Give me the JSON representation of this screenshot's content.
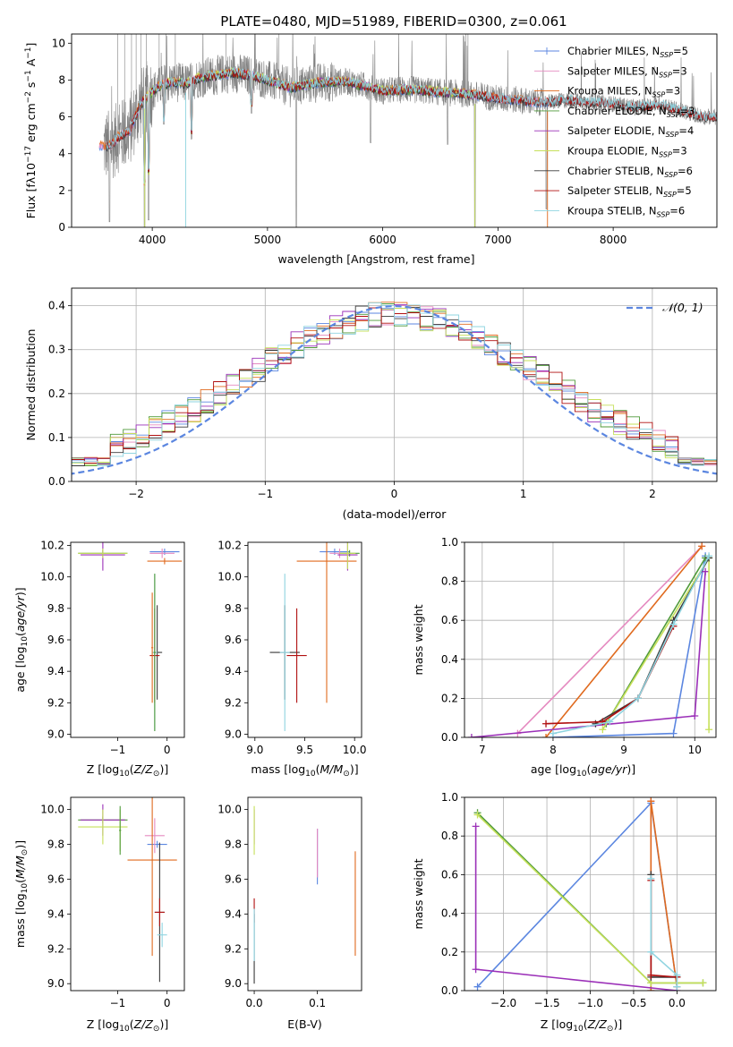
{
  "figure": {
    "title": "PLATE=0480, MJD=51989, FIBERID=0300, z=0.061"
  },
  "colors": {
    "Chabrier MILES": "#5b86e0",
    "Salpeter MILES": "#e58ac0",
    "Kroupa MILES": "#e06a1e",
    "Chabrier ELODIE": "#4f9a3a",
    "Salpeter ELODIE": "#9b30b8",
    "Kroupa ELODIE": "#c6e05a",
    "Chabrier STELIB": "#3a3a3a",
    "Salpeter STELIB": "#b01010",
    "Kroupa STELIB": "#8fd4e0",
    "data": "#808080"
  },
  "chart_data": [
    {
      "id": "spectrum",
      "type": "line",
      "xlabel": "wavelength [Angstrom, rest frame]",
      "ylabel": "Flux [f_λ10^-17 erg cm^-2 s^-1 A^-1]",
      "xlim": [
        3300,
        8900
      ],
      "ylim": [
        0,
        10.5
      ],
      "xticks": [
        4000,
        5000,
        6000,
        7000,
        8000
      ],
      "yticks": [
        0,
        2,
        4,
        6,
        8,
        10
      ],
      "grid": false,
      "legend_placement": "upper right",
      "legend": [
        {
          "model": "Chabrier MILES",
          "label": "Chabrier MILES, N",
          "sub": "SSP",
          "tail": "=5"
        },
        {
          "model": "Salpeter MILES",
          "label": "Salpeter MILES, N",
          "sub": "SSP",
          "tail": "=3"
        },
        {
          "model": "Kroupa MILES",
          "label": "Kroupa MILES, N",
          "sub": "SSP",
          "tail": "=3"
        },
        {
          "model": "Chabrier ELODIE",
          "label": "Chabrier ELODIE, N",
          "sub": "SSP",
          "tail": "=3"
        },
        {
          "model": "Salpeter ELODIE",
          "label": "Salpeter ELODIE, N",
          "sub": "SSP",
          "tail": "=4"
        },
        {
          "model": "Kroupa ELODIE",
          "label": "Kroupa ELODIE, N",
          "sub": "SSP",
          "tail": "=3"
        },
        {
          "model": "Chabrier STELIB",
          "label": "Chabrier STELIB, N",
          "sub": "SSP",
          "tail": "=6"
        },
        {
          "model": "Salpeter STELIB",
          "label": "Salpeter STELIB, N",
          "sub": "SSP",
          "tail": "=5"
        },
        {
          "model": "Kroupa STELIB",
          "label": "Kroupa STELIB, N",
          "sub": "SSP",
          "tail": "=6"
        }
      ],
      "continuum_points": [
        [
          3600,
          4.4
        ],
        [
          3650,
          4.5
        ],
        [
          3700,
          4.9
        ],
        [
          3800,
          5.2
        ],
        [
          3900,
          6.7
        ],
        [
          4000,
          7.4
        ],
        [
          4100,
          7.8
        ],
        [
          4200,
          7.9
        ],
        [
          4300,
          7.8
        ],
        [
          4400,
          8.1
        ],
        [
          4500,
          8.2
        ],
        [
          4600,
          8.3
        ],
        [
          4700,
          8.4
        ],
        [
          4800,
          8.3
        ],
        [
          4900,
          8.2
        ],
        [
          5000,
          8.0
        ],
        [
          5100,
          7.8
        ],
        [
          5200,
          7.6
        ],
        [
          5300,
          7.7
        ],
        [
          5400,
          7.8
        ],
        [
          5500,
          7.9
        ],
        [
          5700,
          7.9
        ],
        [
          5900,
          7.6
        ],
        [
          6000,
          7.4
        ],
        [
          6200,
          7.5
        ],
        [
          6400,
          7.4
        ],
        [
          6600,
          7.3
        ],
        [
          6800,
          7.2
        ],
        [
          7000,
          7.0
        ],
        [
          7200,
          6.9
        ],
        [
          7300,
          6.8
        ],
        [
          7440,
          6.8
        ],
        [
          7600,
          6.9
        ],
        [
          7800,
          6.8
        ],
        [
          8000,
          6.7
        ],
        [
          8200,
          6.5
        ],
        [
          8400,
          6.7
        ],
        [
          8600,
          6.3
        ],
        [
          8800,
          6.0
        ]
      ],
      "data_range": [
        3580,
        8900
      ],
      "data_dips": [
        [
          3630,
          0.3
        ],
        [
          3933,
          0.0
        ],
        [
          3968,
          0.4
        ],
        [
          4100,
          5.6
        ],
        [
          4340,
          4.8
        ],
        [
          4861,
          6.2
        ],
        [
          5250,
          0.0
        ],
        [
          5895,
          4.6
        ],
        [
          6563,
          4.5
        ],
        [
          6800,
          0.0
        ],
        [
          7420,
          1.0
        ]
      ],
      "model_dips": [
        [
          3933,
          2.5
        ],
        [
          3968,
          3.0
        ],
        [
          4100,
          6.0
        ],
        [
          4340,
          5.3
        ],
        [
          4861,
          6.8
        ]
      ],
      "model_ranges": {
        "Chabrier MILES": [
          3540,
          7430
        ],
        "Salpeter MILES": [
          3540,
          7430
        ],
        "Kroupa MILES": [
          3540,
          7430
        ],
        "Chabrier ELODIE": [
          3900,
          6800
        ],
        "Salpeter ELODIE": [
          3900,
          6800
        ],
        "Kroupa ELODIE": [
          3900,
          6800
        ],
        "Chabrier STELIB": [
          3600,
          8900
        ],
        "Salpeter STELIB": [
          3600,
          8900
        ],
        "Kroupa STELIB": [
          3600,
          8900
        ]
      }
    },
    {
      "id": "residual-histogram",
      "type": "bar",
      "xlabel": "(data-model)/error",
      "ylabel": "Normed distribution",
      "xlim": [
        -2.5,
        2.5
      ],
      "ylim": [
        0,
        0.44
      ],
      "xticks": [
        -2,
        -1,
        0,
        1,
        2
      ],
      "yticks": [
        0.0,
        0.1,
        0.2,
        0.3,
        0.4
      ],
      "grid": true,
      "legend_placement": "upper right",
      "reference": {
        "label": "𝒩(0, 1)",
        "mean": 0,
        "sigma": 1,
        "color": "#5b86e0"
      },
      "bin_width": 0.1,
      "note": "per-model normalized histograms of residuals"
    },
    {
      "id": "age-vs-Z",
      "type": "scatter",
      "xlabel": "Z [log10(Z/Z⊙)]",
      "ylabel": "age  [log10(age/yr)]",
      "xlim": [
        -1.95,
        0.35
      ],
      "ylim": [
        8.98,
        10.22
      ],
      "xticks": [
        -1,
        0
      ],
      "yticks": [
        9.0,
        9.2,
        9.4,
        9.6,
        9.8,
        10.0,
        10.2
      ],
      "grid": false,
      "points": [
        {
          "model": "Chabrier MILES",
          "x": -0.05,
          "y": 10.16,
          "ex": 0.3,
          "ey": 0.02
        },
        {
          "model": "Salpeter MILES",
          "x": -0.1,
          "y": 10.15,
          "ex": 0.25,
          "ey": 0.03
        },
        {
          "model": "Kroupa MILES",
          "x": -0.05,
          "y": 10.1,
          "ex": 0.35,
          "ey": 0.02
        },
        {
          "model": "Chabrier ELODIE",
          "x": -1.3,
          "y": 10.15,
          "ex": 0.5,
          "ey": 0.02
        },
        {
          "model": "Salpeter ELODIE",
          "x": -1.3,
          "y": 10.14,
          "ex": 0.45,
          "ey": 0.1
        },
        {
          "model": "Kroupa ELODIE",
          "x": -1.3,
          "y": 10.15,
          "ex": 0.5,
          "ey": 0.03
        },
        {
          "model": "Chabrier STELIB",
          "x": -0.2,
          "y": 9.52,
          "ex": 0.1,
          "ey": 0.3
        },
        {
          "model": "Salpeter STELIB",
          "x": -0.25,
          "y": 9.5,
          "ex": 0.1,
          "ey": 0.3
        },
        {
          "model": "Kroupa STELIB",
          "x": -0.25,
          "y": 9.52,
          "ex": 0.05,
          "ey": 0.5
        },
        {
          "model": "Kroupa MILES",
          "x": -0.3,
          "y": 9.55,
          "ex": 0.02,
          "ey": 0.35
        },
        {
          "model": "Chabrier ELODIE",
          "x": -0.25,
          "y": 9.52,
          "ex": 0.02,
          "ey": 0.5
        }
      ]
    },
    {
      "id": "age-vs-mass",
      "type": "scatter",
      "xlabel": "mass [log10(M/M⊙)]",
      "ylabel": "",
      "xlim": [
        8.93,
        10.07
      ],
      "ylim": [
        8.98,
        10.22
      ],
      "xticks": [
        9.0,
        9.5,
        10.0
      ],
      "yticks": [
        9.0,
        9.2,
        9.4,
        9.6,
        9.8,
        10.0,
        10.2
      ],
      "grid": false,
      "points": [
        {
          "model": "Chabrier MILES",
          "x": 9.8,
          "y": 10.16,
          "ex": 0.15,
          "ey": 0.02
        },
        {
          "model": "Salpeter MILES",
          "x": 9.85,
          "y": 10.15,
          "ex": 0.1,
          "ey": 0.03
        },
        {
          "model": "Kroupa MILES",
          "x": 9.72,
          "y": 10.1,
          "ex": 0.3,
          "ey": 0.9
        },
        {
          "model": "Chabrier ELODIE",
          "x": 9.95,
          "y": 10.15,
          "ex": 0.1,
          "ey": 0.02
        },
        {
          "model": "Salpeter ELODIE",
          "x": 9.93,
          "y": 10.14,
          "ex": 0.1,
          "ey": 0.1
        },
        {
          "model": "Kroupa ELODIE",
          "x": 9.93,
          "y": 10.15,
          "ex": 0.08,
          "ey": 0.1
        },
        {
          "model": "Chabrier STELIB",
          "x": 9.3,
          "y": 9.52,
          "ex": 0.15,
          "ey": 0.3
        },
        {
          "model": "Salpeter STELIB",
          "x": 9.42,
          "y": 9.5,
          "ex": 0.1,
          "ey": 0.3
        },
        {
          "model": "Kroupa STELIB",
          "x": 9.3,
          "y": 9.52,
          "ex": 0.05,
          "ey": 0.5
        }
      ]
    },
    {
      "id": "mass-weight-vs-age",
      "type": "line",
      "xlabel": "age  [log10(age/yr)]",
      "ylabel": "mass weight",
      "xlim": [
        6.75,
        10.3
      ],
      "ylim": [
        0,
        1.0
      ],
      "xticks": [
        7,
        8,
        9,
        10
      ],
      "yticks": [
        0.0,
        0.2,
        0.4,
        0.6,
        0.8,
        1.0
      ],
      "grid": true,
      "series": [
        {
          "model": "Chabrier MILES",
          "x": [
            8.0,
            9.7,
            10.15
          ],
          "y": [
            0.0,
            0.02,
            0.93
          ]
        },
        {
          "model": "Salpeter MILES",
          "x": [
            7.5,
            10.1
          ],
          "y": [
            0.02,
            0.98
          ]
        },
        {
          "model": "Kroupa MILES",
          "x": [
            7.9,
            10.1
          ],
          "y": [
            0.0,
            0.98
          ]
        },
        {
          "model": "Chabrier ELODIE",
          "x": [
            8.75,
            10.15
          ],
          "y": [
            0.07,
            0.92
          ]
        },
        {
          "model": "Salpeter ELODIE",
          "x": [
            6.85,
            10.0,
            10.15
          ],
          "y": [
            0.0,
            0.11,
            0.85
          ]
        },
        {
          "model": "Kroupa ELODIE",
          "x": [
            8.7,
            10.2,
            10.2
          ],
          "y": [
            0.04,
            0.92,
            0.04
          ]
        },
        {
          "model": "Chabrier STELIB",
          "x": [
            8.6,
            9.2,
            9.7,
            10.2
          ],
          "y": [
            0.07,
            0.2,
            0.6,
            0.92
          ]
        },
        {
          "model": "Salpeter STELIB",
          "x": [
            7.9,
            8.7,
            9.2,
            9.7
          ],
          "y": [
            0.07,
            0.08,
            0.2,
            0.57
          ]
        },
        {
          "model": "Kroupa STELIB",
          "x": [
            8.0,
            8.8,
            9.2,
            9.7,
            10.2
          ],
          "y": [
            0.02,
            0.08,
            0.2,
            0.58,
            0.93
          ]
        }
      ]
    },
    {
      "id": "mass-vs-Z",
      "type": "scatter",
      "xlabel": "Z [log10(Z/Z⊙)]",
      "ylabel": "mass [log10(M/M⊙)]",
      "xlim": [
        -1.95,
        0.35
      ],
      "ylim": [
        8.96,
        10.07
      ],
      "xticks": [
        -1,
        0
      ],
      "yticks": [
        9.0,
        9.2,
        9.4,
        9.6,
        9.8,
        10.0
      ],
      "grid": false,
      "points": [
        {
          "model": "Chabrier MILES",
          "x": -0.2,
          "y": 9.8,
          "ex": 0.2,
          "ey": 0.02
        },
        {
          "model": "Salpeter MILES",
          "x": -0.25,
          "y": 9.85,
          "ex": 0.2,
          "ey": 0.1
        },
        {
          "model": "Kroupa MILES",
          "x": -0.3,
          "y": 9.71,
          "ex": 0.5,
          "ey": 0.55
        },
        {
          "model": "Chabrier ELODIE",
          "x": -1.3,
          "y": 9.94,
          "ex": 0.5,
          "ey": 0.02
        },
        {
          "model": "Salpeter ELODIE",
          "x": -1.3,
          "y": 9.94,
          "ex": 0.45,
          "ey": 0.09
        },
        {
          "model": "Kroupa ELODIE",
          "x": -1.3,
          "y": 9.9,
          "ex": 0.5,
          "ey": 0.1
        },
        {
          "model": "Chabrier STELIB",
          "x": -0.15,
          "y": 9.41,
          "ex": 0.1,
          "ey": 0.4
        },
        {
          "model": "Salpeter STELIB",
          "x": -0.15,
          "y": 9.41,
          "ex": 0.1,
          "ey": 0.08
        },
        {
          "model": "Kroupa STELIB",
          "x": -0.1,
          "y": 9.28,
          "ex": 0.1,
          "ey": 0.07
        },
        {
          "model": "Kroupa ELODIE",
          "x": -0.95,
          "y": 9.88,
          "ex": 0.02,
          "ey": 0.12
        },
        {
          "model": "Chabrier ELODIE",
          "x": -0.95,
          "y": 9.88,
          "ex": 0.02,
          "ey": 0.14
        }
      ]
    },
    {
      "id": "ebv-vs-mass",
      "type": "scatter",
      "xlabel": "E(B-V)",
      "ylabel": "",
      "xlim": [
        -0.01,
        0.17
      ],
      "ylim": [
        8.96,
        10.07
      ],
      "xticks": [
        0.0,
        0.1
      ],
      "yticks": [
        9.0,
        9.2,
        9.4,
        9.6,
        9.8,
        10.0
      ],
      "grid": false,
      "points": [
        {
          "model": "Chabrier MILES",
          "x": 0.1,
          "y": 9.73,
          "ex": 0,
          "ey": 0.16
        },
        {
          "model": "Salpeter MILES",
          "x": 0.1,
          "y": 9.75,
          "ex": 0,
          "ey": 0.14
        },
        {
          "model": "Kroupa MILES",
          "x": 0.16,
          "y": 9.46,
          "ex": 0,
          "ey": 0.3
        },
        {
          "model": "Salpeter ELODIE",
          "x": 0.0,
          "y": 9.9,
          "ex": 0,
          "ey": 0.1
        },
        {
          "model": "Kroupa ELODIE",
          "x": 0.0,
          "y": 9.88,
          "ex": 0,
          "ey": 0.14
        },
        {
          "model": "Chabrier STELIB",
          "x": 0.0,
          "y": 9.2,
          "ex": 0,
          "ey": 0.2
        },
        {
          "model": "Salpeter STELIB",
          "x": 0.0,
          "y": 9.42,
          "ex": 0,
          "ey": 0.07
        },
        {
          "model": "Kroupa STELIB",
          "x": 0.0,
          "y": 9.28,
          "ex": 0,
          "ey": 0.15
        }
      ]
    },
    {
      "id": "mass-weight-vs-Z",
      "type": "line",
      "xlabel": "Z [log10(Z/Z⊙)]",
      "ylabel": "mass weight",
      "xlim": [
        -2.45,
        0.45
      ],
      "ylim": [
        0,
        1.0
      ],
      "xticks": [
        -2.0,
        -1.5,
        -1.0,
        -0.5,
        0.0
      ],
      "yticks": [
        0.0,
        0.2,
        0.4,
        0.6,
        0.8,
        1.0
      ],
      "grid": true,
      "series": [
        {
          "model": "Chabrier MILES",
          "x": [
            -2.3,
            -0.3,
            0.0
          ],
          "y": [
            0.02,
            0.97,
            0.02
          ]
        },
        {
          "model": "Salpeter MILES",
          "x": [
            -0.3,
            -0.3
          ],
          "y": [
            0.0,
            0.98
          ]
        },
        {
          "model": "Kroupa MILES",
          "x": [
            -0.3,
            -0.3,
            0.0
          ],
          "y": [
            0.0,
            0.98,
            0.02
          ]
        },
        {
          "model": "Chabrier ELODIE",
          "x": [
            -2.3,
            -0.3,
            0.3
          ],
          "y": [
            0.92,
            0.04,
            0.04
          ]
        },
        {
          "model": "Salpeter ELODIE",
          "x": [
            -2.32,
            -2.32,
            0.0
          ],
          "y": [
            0.85,
            0.11,
            0.0
          ]
        },
        {
          "model": "Kroupa ELODIE",
          "x": [
            -2.3,
            -0.3,
            0.3
          ],
          "y": [
            0.91,
            0.04,
            0.04
          ]
        },
        {
          "model": "Chabrier STELIB",
          "x": [
            -0.3,
            -0.3,
            0.0
          ],
          "y": [
            0.6,
            0.07,
            0.07
          ]
        },
        {
          "model": "Salpeter STELIB",
          "x": [
            -0.3,
            -0.3,
            0.0
          ],
          "y": [
            0.57,
            0.08,
            0.07
          ]
        },
        {
          "model": "Kroupa STELIB",
          "x": [
            -0.3,
            -0.3,
            0.0,
            0.0
          ],
          "y": [
            0.58,
            0.2,
            0.08,
            0.02
          ]
        }
      ]
    }
  ]
}
